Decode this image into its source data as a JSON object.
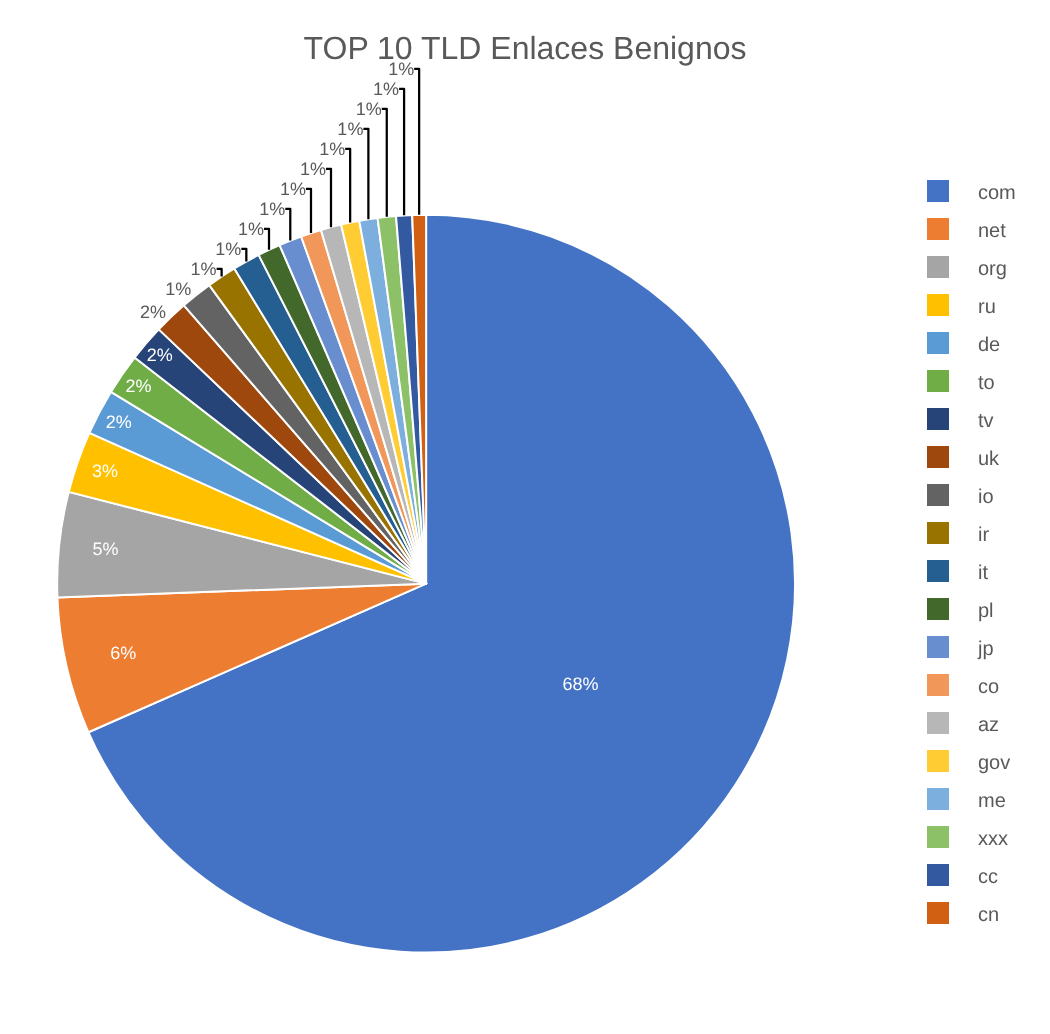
{
  "chart_data": {
    "type": "pie",
    "title": "TOP 10 TLD Enlaces Benignos",
    "categories": [
      "com",
      "net",
      "org",
      "ru",
      "de",
      "to",
      "tv",
      "uk",
      "io",
      "ir",
      "it",
      "pl",
      "jp",
      "co",
      "az",
      "gov",
      "me",
      "xxx",
      "cc",
      "cn"
    ],
    "values": [
      68.4,
      6.0,
      4.6,
      2.7,
      2.0,
      1.8,
      1.6,
      1.5,
      1.4,
      1.3,
      1.2,
      1.0,
      1.0,
      0.9,
      0.9,
      0.8,
      0.8,
      0.8,
      0.7,
      0.6
    ],
    "value_labels": [
      "68%",
      "6%",
      "5%",
      "3%",
      "2%",
      "2%",
      "2%",
      "2%",
      "1%",
      "1%",
      "1%",
      "1%",
      "1%",
      "1%",
      "1%",
      "1%",
      "1%",
      "1%",
      "1%",
      "1%"
    ],
    "colors": [
      "#4472c4",
      "#ed7d31",
      "#a5a5a5",
      "#ffc000",
      "#5b9bd5",
      "#70ad47",
      "#264478",
      "#9e480e",
      "#636363",
      "#997300",
      "#255e91",
      "#43682b",
      "#698ed0",
      "#f1975a",
      "#b7b7b7",
      "#ffcd33",
      "#7cafdd",
      "#8cc168",
      "#335aa1",
      "#d26012"
    ],
    "legend": "right"
  }
}
